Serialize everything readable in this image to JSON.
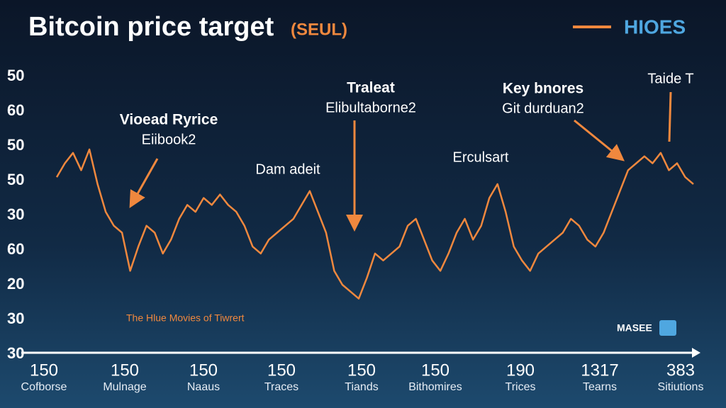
{
  "chart_data": {
    "type": "line",
    "title": "Bitcoin price target",
    "subtitle": "(SEUL)",
    "legend": {
      "name": "HIOES",
      "color": "#f0883e"
    },
    "series": [
      {
        "name": "HIOES",
        "color": "#f0883e",
        "values": [
          5.1,
          5.5,
          5.8,
          5.3,
          5.9,
          4.9,
          4.1,
          3.7,
          3.5,
          2.4,
          3.1,
          3.7,
          3.5,
          2.9,
          3.3,
          3.9,
          4.3,
          4.1,
          4.5,
          4.3,
          4.6,
          4.3,
          4.1,
          3.7,
          3.1,
          2.9,
          3.3,
          3.5,
          3.7,
          3.9,
          4.3,
          4.7,
          4.1,
          3.5,
          2.4,
          2.0,
          1.8,
          1.6,
          2.2,
          2.9,
          2.7,
          2.9,
          3.1,
          3.7,
          3.9,
          3.3,
          2.7,
          2.4,
          2.9,
          3.5,
          3.9,
          3.3,
          3.7,
          4.5,
          4.9,
          4.1,
          3.1,
          2.7,
          2.4,
          2.9,
          3.1,
          3.3,
          3.5,
          3.9,
          3.7,
          3.3,
          3.1,
          3.5,
          4.1,
          4.7,
          5.3,
          5.5,
          5.7,
          5.5,
          5.8,
          5.3,
          5.5,
          5.1,
          4.9
        ]
      }
    ],
    "ylim": [
      0,
      8
    ],
    "yticks": [
      {
        "value": 0,
        "label": "30"
      },
      {
        "value": 1,
        "label": "30"
      },
      {
        "value": 2,
        "label": "20"
      },
      {
        "value": 3,
        "label": "60"
      },
      {
        "value": 4,
        "label": "30"
      },
      {
        "value": 5,
        "label": "50"
      },
      {
        "value": 6,
        "label": "50"
      },
      {
        "value": 7,
        "label": "60"
      },
      {
        "value": 8,
        "label": "50"
      }
    ],
    "x_labels": [
      {
        "number": "150",
        "name": "Cofborse"
      },
      {
        "number": "150",
        "name": "Mulnage"
      },
      {
        "number": "150",
        "name": "Naaus"
      },
      {
        "number": "150",
        "name": "Traces"
      },
      {
        "number": "150",
        "name": "Tiands"
      },
      {
        "number": "150",
        "name": "Bithomires"
      },
      {
        "number": "190",
        "name": "Trices"
      },
      {
        "number": "1317",
        "name": "Tearns"
      },
      {
        "number": "383",
        "name": "Sitiutions"
      }
    ],
    "annotations": [
      {
        "title": "Vioead Ryrice",
        "text": "Eiibook2"
      },
      {
        "text": "Dam adeit"
      },
      {
        "title": "Traleat",
        "text": "Elibultaborne2"
      },
      {
        "text": "Erculsart"
      },
      {
        "title": "Key bnores",
        "text": "Git durduan2"
      },
      {
        "text": "Taide T"
      }
    ],
    "caption": "The Hlue Movies of Tiwrert",
    "badge": "MASEE"
  }
}
